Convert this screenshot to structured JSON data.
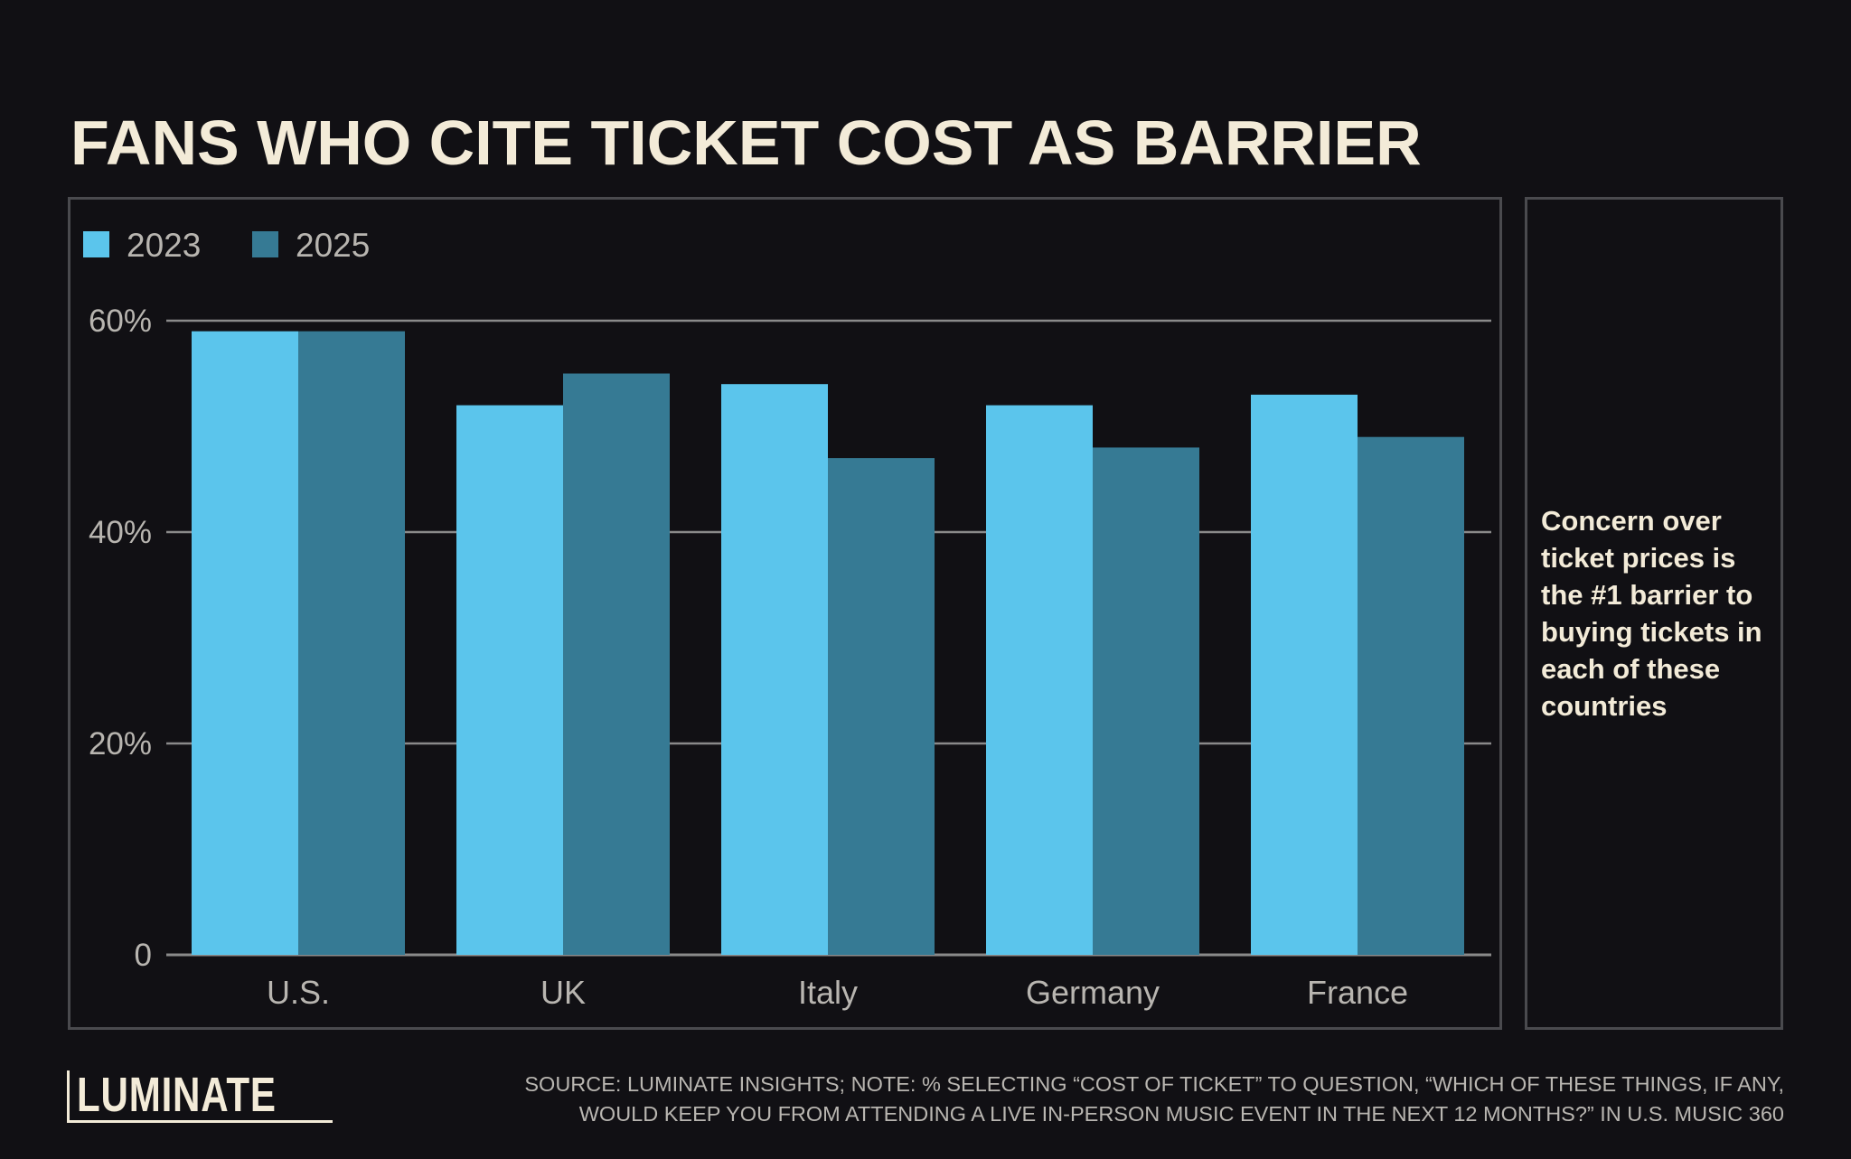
{
  "title": "FANS WHO CITE TICKET COST AS BARRIER",
  "side_note": "Concern over ticket prices is the #1 barrier to buying tickets in each of these countries",
  "footnote": {
    "line1": "SOURCE: LUMINATE INSIGHTS; NOTE: % SELECTING “COST OF TICKET” TO QUESTION, “WHICH OF THESE THINGS, IF ANY,",
    "line2": "WOULD KEEP YOU FROM ATTENDING A LIVE IN-PERSON MUSIC EVENT IN THE NEXT 12 MONTHS?” IN U.S. MUSIC 360"
  },
  "logo_text": "LUMINATE",
  "colors": {
    "background": "#111014",
    "series_2023": "#5bc5ec",
    "series_2025": "#367a94",
    "gridline": "#8a8a8a",
    "axis_text": "#b8b5b0",
    "title_text": "#f3ebd8"
  },
  "chart_data": {
    "type": "bar",
    "categories": [
      "U.S.",
      "UK",
      "Italy",
      "Germany",
      "France"
    ],
    "series": [
      {
        "name": "2023",
        "values": [
          59,
          52,
          54,
          52,
          53
        ]
      },
      {
        "name": "2025",
        "values": [
          59,
          55,
          47,
          48,
          49
        ]
      }
    ],
    "yticks": [
      0,
      20,
      40,
      60
    ],
    "ytick_labels": [
      "0",
      "20%",
      "40%",
      "60%"
    ],
    "ylim": [
      0,
      60
    ],
    "grid": true,
    "legend": "top-left"
  }
}
